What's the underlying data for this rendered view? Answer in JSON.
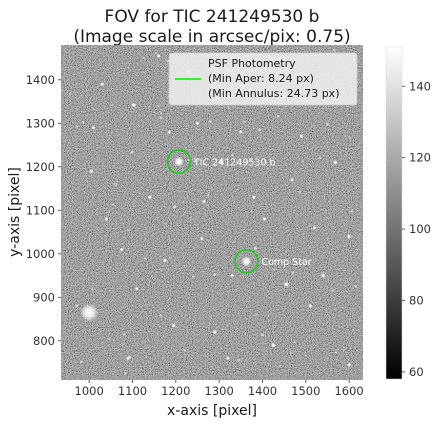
{
  "chart_data": {
    "type": "heatmap",
    "title_line1": "FOV for TIC 241249530 b",
    "title_line2": "(Image scale in arcsec/pix: 0.75)",
    "xlabel": "x-axis [pixel]",
    "ylabel": "y-axis [pixel]",
    "xlim": [
      935,
      1632
    ],
    "ylim": [
      710,
      1480
    ],
    "xticks": [
      1000,
      1100,
      1200,
      1300,
      1400,
      1500,
      1600
    ],
    "yticks": [
      800,
      900,
      1000,
      1100,
      1200,
      1300,
      1400
    ],
    "colorbar": {
      "range": [
        58,
        151
      ],
      "ticks": [
        60,
        80,
        100,
        120,
        140
      ],
      "colormap": "gray"
    },
    "legend": {
      "placement": "top-right",
      "entries": [
        {
          "line1": "PSF Photometry",
          "line2": "(Min Aper: 8.24 px)",
          "line3": "(Min Annulus: 24.73 px)",
          "color": "#33ee33"
        }
      ]
    },
    "apertures": [
      {
        "label": "TIC 241249530 b",
        "x": 1207,
        "y": 1212,
        "color": "#22cc22"
      },
      {
        "label": "Comp Star",
        "x": 1363,
        "y": 983,
        "color": "#22cc22"
      }
    ],
    "grid": false
  }
}
